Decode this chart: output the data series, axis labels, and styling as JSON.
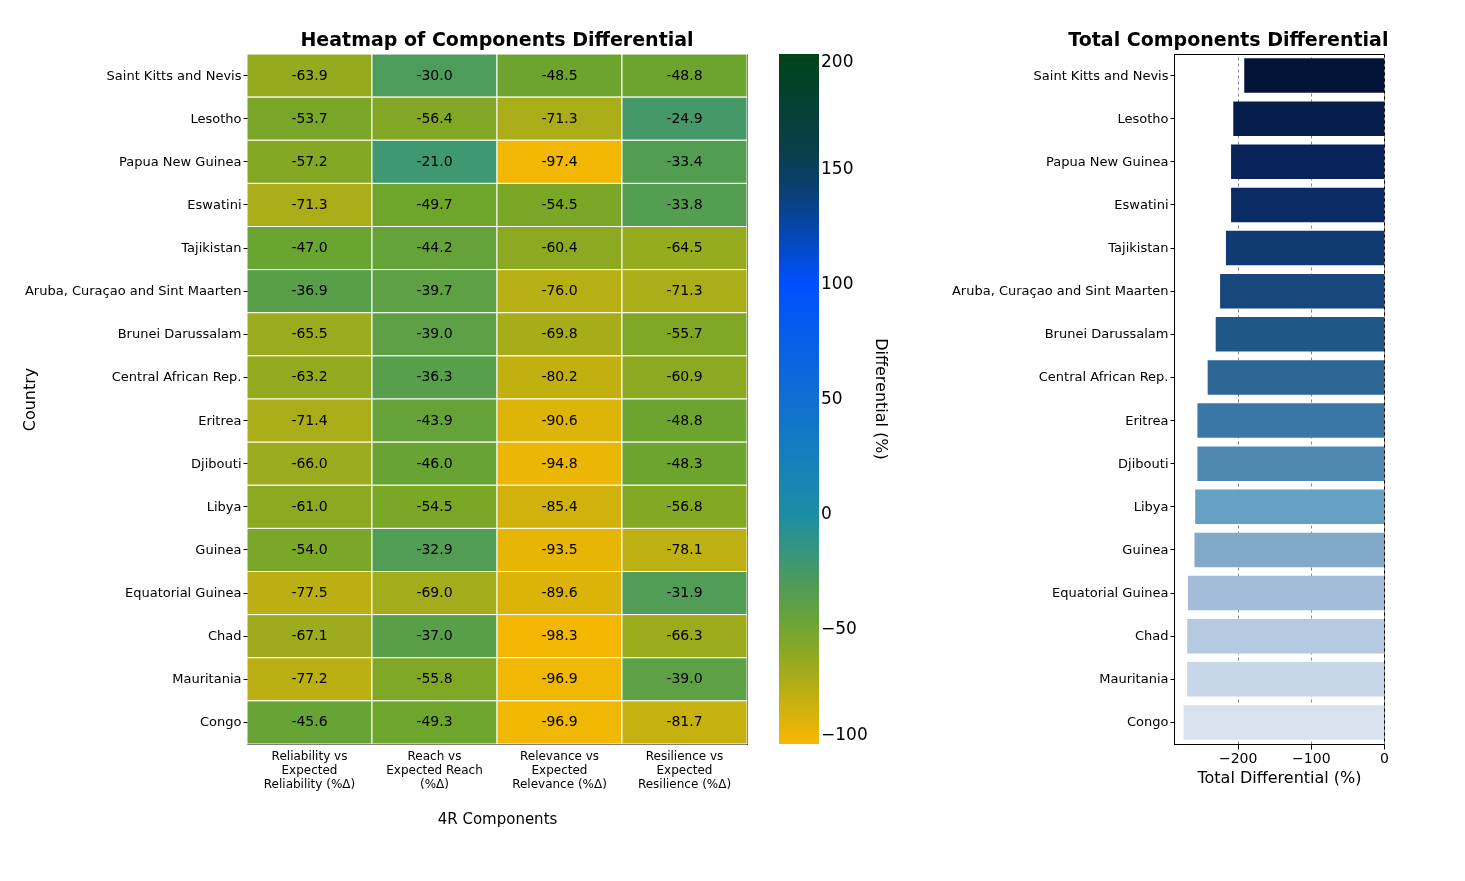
{
  "chart_data": [
    {
      "type": "heatmap",
      "title": "Heatmap of Components Differential",
      "xlabel": "4R Components",
      "ylabel": "Country",
      "clabel": "Differential (%)",
      "categories": [
        "Reliability vs Expected Reliability (%Δ)",
        "Reach vs Expected Reach (%Δ)",
        "Relevance vs Expected Relevance (%Δ)",
        "Resilience vs Expected Resilience (%Δ)"
      ],
      "y_categories": [
        "Saint Kitts and Nevis",
        "Lesotho",
        "Papua New Guinea",
        "Eswatini",
        "Tajikistan",
        "Aruba, Curaçao and Sint Maarten",
        "Brunei Darussalam",
        "Central African Rep.",
        "Eritrea",
        "Djibouti",
        "Libya",
        "Guinea",
        "Equatorial Guinea",
        "Chad",
        "Mauritania",
        "Congo"
      ],
      "cells": [
        [
          -63.9,
          -30.0,
          -48.5,
          -48.8
        ],
        [
          -53.7,
          -56.4,
          -71.3,
          -24.9
        ],
        [
          -57.2,
          -21.0,
          -97.4,
          -33.4
        ],
        [
          -71.3,
          -49.7,
          -54.5,
          -33.8
        ],
        [
          -47.0,
          -44.2,
          -60.4,
          -64.5
        ],
        [
          -36.9,
          -39.7,
          -76.0,
          -71.3
        ],
        [
          -65.5,
          -39.0,
          -69.8,
          -55.7
        ],
        [
          -63.2,
          -36.3,
          -80.2,
          -60.9
        ],
        [
          -71.4,
          -43.9,
          -90.6,
          -48.8
        ],
        [
          -66.0,
          -46.0,
          -94.8,
          -48.3
        ],
        [
          -61.0,
          -54.5,
          -85.4,
          -56.8
        ],
        [
          -54.0,
          -32.9,
          -93.5,
          -78.1
        ],
        [
          -77.5,
          -69.0,
          -89.6,
          -31.9
        ],
        [
          -67.1,
          -37.0,
          -98.3,
          -66.3
        ],
        [
          -77.2,
          -55.8,
          -96.9,
          -39.0
        ],
        [
          -45.6,
          -49.3,
          -96.9,
          -81.7
        ]
      ],
      "cell_labels": [
        [
          "-63.9",
          "-30.0",
          "-48.5",
          "-48.8"
        ],
        [
          "-53.7",
          "-56.4",
          "-71.3",
          "-24.9"
        ],
        [
          "-57.2",
          "-21.0",
          "-97.4",
          "-33.4"
        ],
        [
          "-71.3",
          "-49.7",
          "-54.5",
          "-33.8"
        ],
        [
          "-47.0",
          "-44.2",
          "-60.4",
          "-64.5"
        ],
        [
          "-36.9",
          "-39.7",
          "-76.0",
          "-71.3"
        ],
        [
          "-65.5",
          "-39.0",
          "-69.8",
          "-55.7"
        ],
        [
          "-63.2",
          "-36.3",
          "-80.2",
          "-60.9"
        ],
        [
          "-71.4",
          "-43.9",
          "-90.6",
          "-48.8"
        ],
        [
          "-66.0",
          "-46.0",
          "-94.8",
          "-48.3"
        ],
        [
          "-61.0",
          "-54.5",
          "-85.4",
          "-56.8"
        ],
        [
          "-54.0",
          "-32.9",
          "-93.5",
          "-78.1"
        ],
        [
          "-77.5",
          "-69.0",
          "-89.6",
          "-31.9"
        ],
        [
          "-67.1",
          "-37.0",
          "-98.3",
          "-66.3"
        ],
        [
          "-77.2",
          "-55.8",
          "-96.9",
          "-39.0"
        ],
        [
          "-45.6",
          "-49.3",
          "-96.9",
          "-81.7"
        ]
      ],
      "clim": [
        -100,
        200
      ],
      "cticks": [
        -100,
        -50,
        0,
        50,
        100,
        150,
        200
      ],
      "data_labels": true
    },
    {
      "type": "bar",
      "orientation": "horizontal",
      "title": "Total Components Differential",
      "xlabel": "Total Differential (%)",
      "categories": [
        "Saint Kitts and Nevis",
        "Lesotho",
        "Papua New Guinea",
        "Eswatini",
        "Tajikistan",
        "Aruba, Curaçao and Sint Maarten",
        "Brunei Darussalam",
        "Central African Rep.",
        "Eritrea",
        "Djibouti",
        "Libya",
        "Guinea",
        "Equatorial Guinea",
        "Chad",
        "Mauritania",
        "Congo"
      ],
      "values": [
        -191,
        -206,
        -209,
        -209,
        -216,
        -224,
        -230,
        -241,
        -255,
        -255,
        -258,
        -259,
        -268,
        -269,
        -269,
        -274
      ],
      "colors": [
        "#041438",
        "#061c4a",
        "#08235a",
        "#0b2b66",
        "#103a72",
        "#17477c",
        "#205786",
        "#2c6694",
        "#3b77a6",
        "#4e88b0",
        "#66a0c3",
        "#82aac8",
        "#a3bcd9",
        "#b5c9e1",
        "#c5d7e8",
        "#d9e3f0"
      ],
      "xlim": [
        -287,
        0
      ],
      "xticks": [
        -200,
        -100,
        0
      ],
      "grid": "x"
    }
  ]
}
